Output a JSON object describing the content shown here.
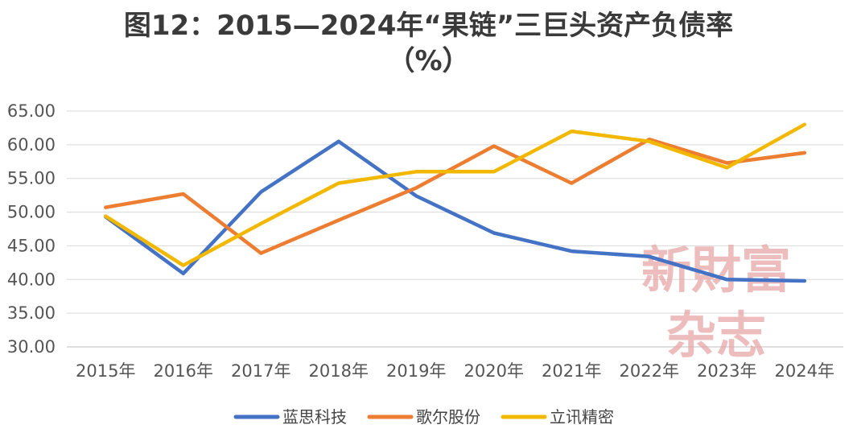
{
  "chart_data": {
    "type": "line",
    "title_line1": "图12：2015—2024年“果链”三巨头资产负债率",
    "title_line2": "（%）",
    "categories": [
      "2015年",
      "2016年",
      "2017年",
      "2018年",
      "2019年",
      "2020年",
      "2021年",
      "2022年",
      "2023年",
      "2024年"
    ],
    "y_ticks": [
      "30.00",
      "35.00",
      "40.00",
      "45.00",
      "50.00",
      "55.00",
      "60.00",
      "65.00"
    ],
    "ylim": [
      30,
      65
    ],
    "grid": true,
    "legend_position": "bottom",
    "series": [
      {
        "name": "蓝思科技",
        "color": "#4472c4",
        "values": [
          49.3,
          40.9,
          53.0,
          60.5,
          52.4,
          46.9,
          44.2,
          43.4,
          40.0,
          39.8
        ]
      },
      {
        "name": "歌尔股份",
        "color": "#ed7d31",
        "values": [
          50.7,
          52.7,
          43.9,
          48.8,
          53.6,
          59.8,
          54.3,
          60.8,
          57.3,
          58.8
        ]
      },
      {
        "name": "立讯精密",
        "color": "#f2b800",
        "values": [
          49.4,
          42.1,
          48.3,
          54.3,
          56.0,
          56.0,
          62.0,
          60.5,
          56.6,
          63.0
        ]
      }
    ]
  },
  "watermark": {
    "line1": "新財富",
    "line2": "杂志"
  }
}
